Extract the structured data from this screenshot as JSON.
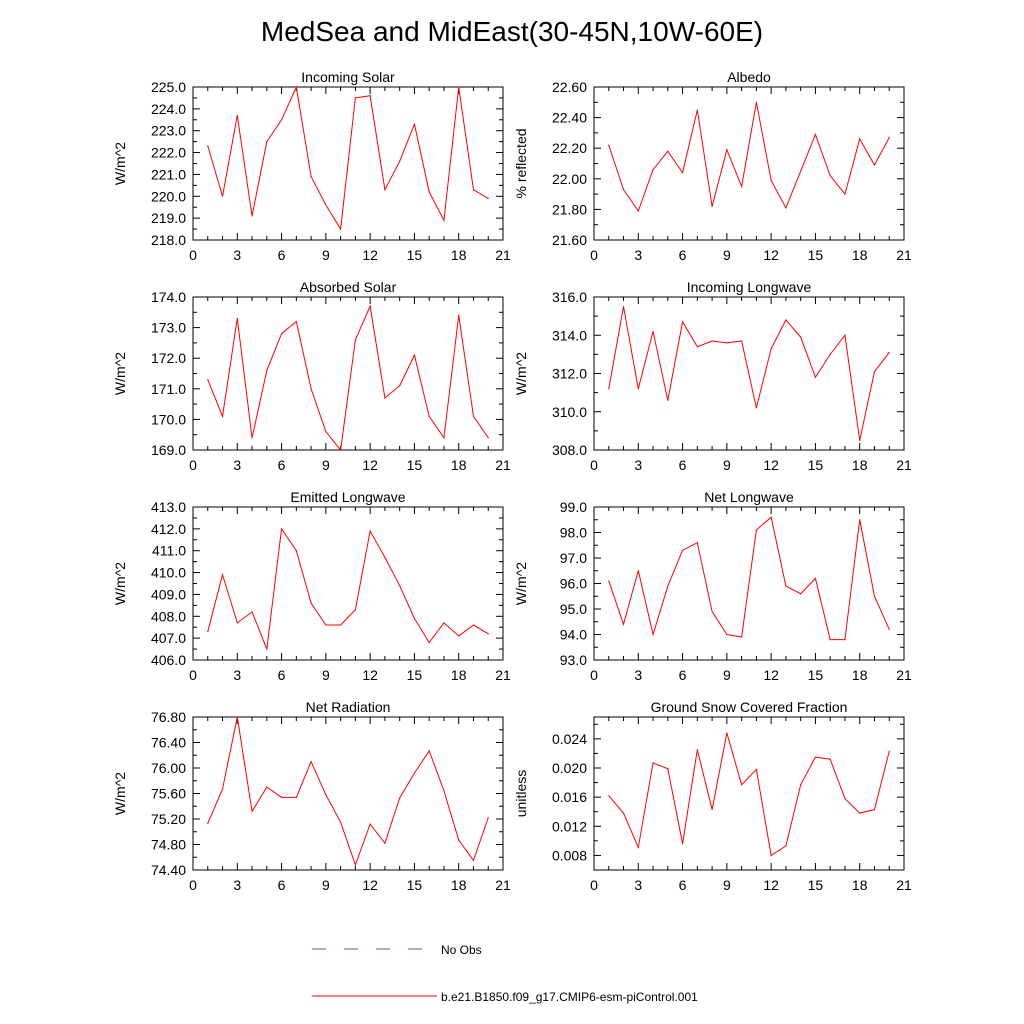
{
  "title": "MedSea and MidEast(30-45N,10W-60E)",
  "legend": {
    "items": [
      {
        "label": "No Obs",
        "style": "dashed",
        "color": "#5a5ad6"
      },
      {
        "label": "b.e21.B1850.f09_g17.CMIP6-esm-piControl.001",
        "style": "solid",
        "color": "#ff0000"
      }
    ]
  },
  "series_color": "#ff0000",
  "chart_data": [
    {
      "type": "line",
      "title": "Incoming Solar",
      "xlabel": "",
      "ylabel": "W/m^2",
      "xlim": [
        0,
        21
      ],
      "xticks": [
        0,
        3,
        6,
        9,
        12,
        15,
        18,
        21
      ],
      "ylim": [
        218.0,
        225.0
      ],
      "yticks": [
        218.0,
        219.0,
        220.0,
        221.0,
        222.0,
        223.0,
        224.0,
        225.0
      ],
      "ydecimals": 1,
      "x": [
        1,
        2,
        3,
        4,
        5,
        6,
        7,
        8,
        9,
        10,
        11,
        12,
        13,
        14,
        15,
        16,
        17,
        18,
        19,
        20
      ],
      "series": [
        {
          "name": "b.e21.B1850.f09_g17.CMIP6-esm-piControl.001",
          "values": [
            222.3,
            220.0,
            223.7,
            219.1,
            222.5,
            223.5,
            225.0,
            220.9,
            219.6,
            218.5,
            224.5,
            224.6,
            220.3,
            221.6,
            223.3,
            220.2,
            218.9,
            225.0,
            220.3,
            219.9
          ]
        }
      ]
    },
    {
      "type": "line",
      "title": "Albedo",
      "xlabel": "",
      "ylabel": "% reflected",
      "xlim": [
        0,
        21
      ],
      "xticks": [
        0,
        3,
        6,
        9,
        12,
        15,
        18,
        21
      ],
      "ylim": [
        21.6,
        22.6
      ],
      "yticks": [
        21.6,
        21.8,
        22.0,
        22.2,
        22.4,
        22.6
      ],
      "ydecimals": 2,
      "x": [
        1,
        2,
        3,
        4,
        5,
        6,
        7,
        8,
        9,
        10,
        11,
        12,
        13,
        14,
        15,
        16,
        17,
        18,
        19,
        20
      ],
      "series": [
        {
          "name": "b.e21.B1850.f09_g17.CMIP6-esm-piControl.001",
          "values": [
            22.22,
            21.93,
            21.79,
            22.06,
            22.18,
            22.04,
            22.45,
            21.82,
            22.19,
            21.95,
            22.5,
            21.99,
            21.81,
            22.05,
            22.29,
            22.02,
            21.9,
            22.26,
            22.09,
            22.27
          ]
        }
      ]
    },
    {
      "type": "line",
      "title": "Absorbed Solar",
      "xlabel": "",
      "ylabel": "W/m^2",
      "xlim": [
        0,
        21
      ],
      "xticks": [
        0,
        3,
        6,
        9,
        12,
        15,
        18,
        21
      ],
      "ylim": [
        169.0,
        174.0
      ],
      "yticks": [
        169.0,
        170.0,
        171.0,
        172.0,
        173.0,
        174.0
      ],
      "ydecimals": 1,
      "x": [
        1,
        2,
        3,
        4,
        5,
        6,
        7,
        8,
        9,
        10,
        11,
        12,
        13,
        14,
        15,
        16,
        17,
        18,
        19,
        20
      ],
      "series": [
        {
          "name": "b.e21.B1850.f09_g17.CMIP6-esm-piControl.001",
          "values": [
            171.3,
            170.1,
            173.3,
            169.4,
            171.6,
            172.8,
            173.2,
            171.0,
            169.6,
            169.0,
            172.6,
            173.7,
            170.7,
            171.1,
            172.1,
            170.1,
            169.4,
            173.4,
            170.1,
            169.4
          ]
        }
      ]
    },
    {
      "type": "line",
      "title": "Incoming Longwave",
      "xlabel": "",
      "ylabel": "W/m^2",
      "xlim": [
        0,
        21
      ],
      "xticks": [
        0,
        3,
        6,
        9,
        12,
        15,
        18,
        21
      ],
      "ylim": [
        308.0,
        316.0
      ],
      "yticks": [
        308.0,
        310.0,
        312.0,
        314.0,
        316.0
      ],
      "ydecimals": 1,
      "x": [
        1,
        2,
        3,
        4,
        5,
        6,
        7,
        8,
        9,
        10,
        11,
        12,
        13,
        14,
        15,
        16,
        17,
        18,
        19,
        20
      ],
      "series": [
        {
          "name": "b.e21.B1850.f09_g17.CMIP6-esm-piControl.001",
          "values": [
            311.2,
            315.5,
            311.2,
            314.2,
            310.6,
            314.7,
            313.4,
            313.7,
            313.6,
            313.7,
            310.2,
            313.3,
            314.8,
            313.9,
            311.8,
            313.0,
            314.0,
            308.5,
            312.1,
            313.1
          ]
        }
      ]
    },
    {
      "type": "line",
      "title": "Emitted Longwave",
      "xlabel": "",
      "ylabel": "W/m^2",
      "xlim": [
        0,
        21
      ],
      "xticks": [
        0,
        3,
        6,
        9,
        12,
        15,
        18,
        21
      ],
      "ylim": [
        406.0,
        413.0
      ],
      "yticks": [
        406.0,
        407.0,
        408.0,
        409.0,
        410.0,
        411.0,
        412.0,
        413.0
      ],
      "ydecimals": 1,
      "x": [
        1,
        2,
        3,
        4,
        5,
        6,
        7,
        8,
        9,
        10,
        11,
        12,
        13,
        14,
        15,
        16,
        17,
        18,
        19,
        20
      ],
      "series": [
        {
          "name": "b.e21.B1850.f09_g17.CMIP6-esm-piControl.001",
          "values": [
            407.3,
            409.9,
            407.7,
            408.2,
            406.5,
            412.0,
            411.0,
            408.6,
            407.6,
            407.6,
            408.3,
            411.9,
            410.7,
            409.4,
            407.9,
            406.8,
            407.7,
            407.1,
            407.6,
            407.2
          ]
        }
      ]
    },
    {
      "type": "line",
      "title": "Net Longwave",
      "xlabel": "",
      "ylabel": "W/m^2",
      "xlim": [
        0,
        21
      ],
      "xticks": [
        0,
        3,
        6,
        9,
        12,
        15,
        18,
        21
      ],
      "ylim": [
        93.0,
        99.0
      ],
      "yticks": [
        93.0,
        94.0,
        95.0,
        96.0,
        97.0,
        98.0,
        99.0
      ],
      "ydecimals": 1,
      "x": [
        1,
        2,
        3,
        4,
        5,
        6,
        7,
        8,
        9,
        10,
        11,
        12,
        13,
        14,
        15,
        16,
        17,
        18,
        19,
        20
      ],
      "series": [
        {
          "name": "b.e21.B1850.f09_g17.CMIP6-esm-piControl.001",
          "values": [
            96.1,
            94.4,
            96.5,
            94.0,
            95.9,
            97.3,
            97.6,
            94.9,
            94.0,
            93.9,
            98.1,
            98.6,
            95.9,
            95.6,
            96.2,
            93.8,
            93.8,
            98.5,
            95.5,
            94.2
          ]
        }
      ]
    },
    {
      "type": "line",
      "title": "Net Radiation",
      "xlabel": "",
      "ylabel": "W/m^2",
      "xlim": [
        0,
        21
      ],
      "xticks": [
        0,
        3,
        6,
        9,
        12,
        15,
        18,
        21
      ],
      "ylim": [
        74.4,
        76.8
      ],
      "yticks": [
        74.4,
        74.8,
        75.2,
        75.6,
        76.0,
        76.4,
        76.8
      ],
      "ydecimals": 2,
      "x": [
        1,
        2,
        3,
        4,
        5,
        6,
        7,
        8,
        9,
        10,
        11,
        12,
        13,
        14,
        15,
        16,
        17,
        18,
        19,
        20
      ],
      "series": [
        {
          "name": "b.e21.B1850.f09_g17.CMIP6-esm-piControl.001",
          "values": [
            75.13,
            75.67,
            76.8,
            75.32,
            75.7,
            75.54,
            75.54,
            76.1,
            75.58,
            75.15,
            74.48,
            75.12,
            74.82,
            75.53,
            75.92,
            76.27,
            75.64,
            74.87,
            74.55,
            75.22
          ]
        }
      ]
    },
    {
      "type": "line",
      "title": "Ground Snow Covered Fraction",
      "xlabel": "",
      "ylabel": "unitless",
      "xlim": [
        0,
        21
      ],
      "xticks": [
        0,
        3,
        6,
        9,
        12,
        15,
        18,
        21
      ],
      "ylim": [
        0.006,
        0.027
      ],
      "yticks": [
        0.008,
        0.012,
        0.016,
        0.02,
        0.024
      ],
      "ydecimals": 3,
      "x": [
        1,
        2,
        3,
        4,
        5,
        6,
        7,
        8,
        9,
        10,
        11,
        12,
        13,
        14,
        15,
        16,
        17,
        18,
        19,
        20
      ],
      "series": [
        {
          "name": "b.e21.B1850.f09_g17.CMIP6-esm-piControl.001",
          "values": [
            0.0162,
            0.0138,
            0.0091,
            0.0207,
            0.0199,
            0.0096,
            0.0225,
            0.0143,
            0.0248,
            0.0177,
            0.0198,
            0.008,
            0.0093,
            0.0177,
            0.0215,
            0.0212,
            0.0158,
            0.0138,
            0.0143,
            0.0223
          ]
        }
      ]
    }
  ]
}
